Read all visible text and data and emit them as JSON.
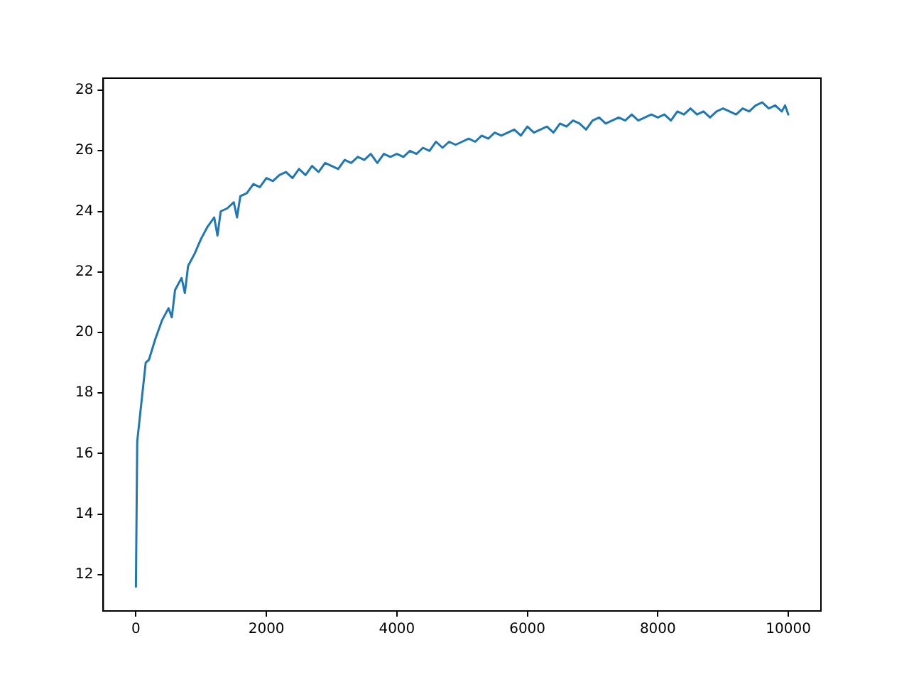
{
  "chart_data": {
    "type": "line",
    "x": [
      0,
      20,
      50,
      100,
      150,
      200,
      300,
      400,
      500,
      550,
      600,
      700,
      750,
      800,
      900,
      1000,
      1100,
      1200,
      1250,
      1300,
      1400,
      1500,
      1550,
      1600,
      1700,
      1800,
      1900,
      2000,
      2100,
      2200,
      2300,
      2400,
      2500,
      2600,
      2700,
      2800,
      2900,
      3000,
      3100,
      3200,
      3300,
      3400,
      3500,
      3600,
      3700,
      3800,
      3900,
      4000,
      4100,
      4200,
      4300,
      4400,
      4500,
      4600,
      4700,
      4800,
      4900,
      5000,
      5100,
      5200,
      5300,
      5400,
      5500,
      5600,
      5700,
      5800,
      5900,
      6000,
      6100,
      6200,
      6300,
      6400,
      6500,
      6600,
      6700,
      6800,
      6900,
      7000,
      7100,
      7200,
      7300,
      7400,
      7500,
      7600,
      7700,
      7800,
      7900,
      8000,
      8100,
      8200,
      8300,
      8400,
      8500,
      8600,
      8700,
      8800,
      8900,
      9000,
      9100,
      9200,
      9300,
      9400,
      9500,
      9600,
      9700,
      9800,
      9900,
      9950,
      10000
    ],
    "series": [
      {
        "color": "#1f77b4",
        "values": [
          11.6,
          16.4,
          17.0,
          18.0,
          19.0,
          19.1,
          19.8,
          20.4,
          20.8,
          20.5,
          21.4,
          21.8,
          21.3,
          22.2,
          22.6,
          23.1,
          23.5,
          23.8,
          23.2,
          24.0,
          24.1,
          24.3,
          23.8,
          24.5,
          24.6,
          24.9,
          24.8,
          25.1,
          25.0,
          25.2,
          25.3,
          25.1,
          25.4,
          25.2,
          25.5,
          25.3,
          25.6,
          25.5,
          25.4,
          25.7,
          25.6,
          25.8,
          25.7,
          25.9,
          25.6,
          25.9,
          25.8,
          25.9,
          25.8,
          26.0,
          25.9,
          26.1,
          26.0,
          26.3,
          26.1,
          26.3,
          26.2,
          26.3,
          26.4,
          26.3,
          26.5,
          26.4,
          26.6,
          26.5,
          26.6,
          26.7,
          26.5,
          26.8,
          26.6,
          26.7,
          26.8,
          26.6,
          26.9,
          26.8,
          27.0,
          26.9,
          26.7,
          27.0,
          27.1,
          26.9,
          27.0,
          27.1,
          27.0,
          27.2,
          27.0,
          27.1,
          27.2,
          27.1,
          27.2,
          27.0,
          27.3,
          27.2,
          27.4,
          27.2,
          27.3,
          27.1,
          27.3,
          27.4,
          27.3,
          27.2,
          27.4,
          27.3,
          27.5,
          27.6,
          27.4,
          27.5,
          27.3,
          27.5,
          27.2
        ]
      }
    ],
    "xlim": [
      -500,
      10500
    ],
    "xticks": [
      0,
      2000,
      4000,
      6000,
      8000,
      10000
    ],
    "ylim": [
      10.8,
      28.4
    ],
    "yticks": [
      12,
      14,
      16,
      18,
      20,
      22,
      24,
      26,
      28
    ],
    "grid": false,
    "legend": false,
    "marker": "none",
    "line_style": "solid"
  }
}
